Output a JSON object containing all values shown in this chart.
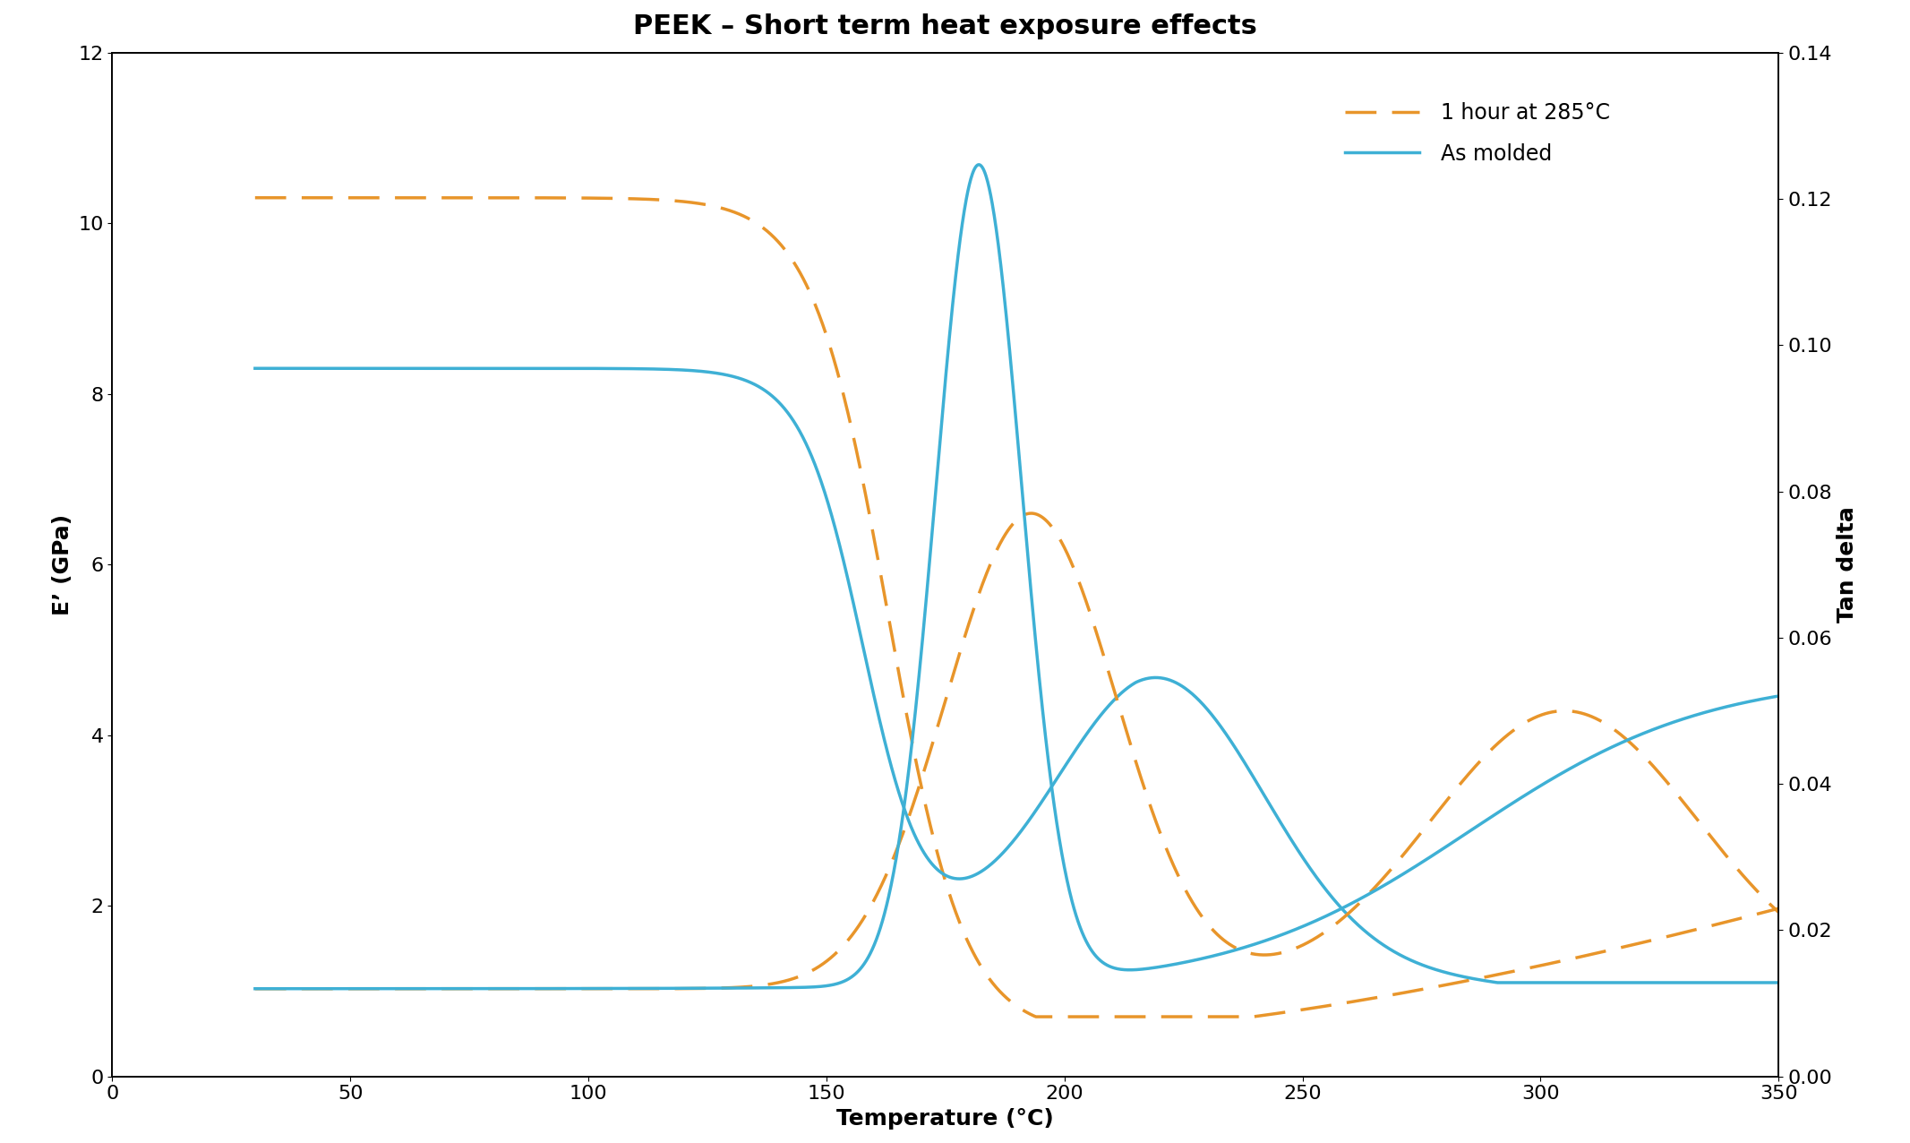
{
  "title": "PEEK – Short term heat exposure effects",
  "xlabel": "Temperature (°C)",
  "ylabel_left": "E’ (GPa)",
  "ylabel_right": "Tan delta",
  "xlim": [
    0,
    350
  ],
  "ylim_left": [
    0,
    12
  ],
  "ylim_right": [
    0,
    0.14
  ],
  "color_orange": "#E8952A",
  "color_blue": "#3EB0D5",
  "legend_1": "1 hour at 285°C",
  "legend_2": "As molded",
  "title_fontsize": 22,
  "label_fontsize": 18,
  "tick_fontsize": 16,
  "legend_fontsize": 17,
  "lw": 2.5
}
